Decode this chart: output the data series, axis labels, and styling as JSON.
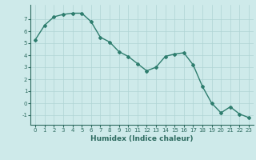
{
  "x": [
    0,
    1,
    2,
    3,
    4,
    5,
    6,
    7,
    8,
    9,
    10,
    11,
    12,
    13,
    14,
    15,
    16,
    17,
    18,
    19,
    20,
    21,
    22,
    23
  ],
  "y": [
    5.3,
    6.5,
    7.2,
    7.4,
    7.5,
    7.5,
    6.8,
    5.5,
    5.1,
    4.3,
    3.9,
    3.3,
    2.7,
    3.0,
    3.9,
    4.1,
    4.2,
    3.2,
    1.4,
    0.0,
    -0.8,
    -0.3,
    -0.9,
    -1.2
  ],
  "line_color": "#2e7d6e",
  "marker": "D",
  "marker_size": 2,
  "bg_color": "#ceeaea",
  "grid_color": "#afd4d4",
  "xlabel": "Humidex (Indice chaleur)",
  "xlim": [
    -0.5,
    23.5
  ],
  "ylim": [
    -1.8,
    8.2
  ],
  "yticks": [
    -1,
    0,
    1,
    2,
    3,
    4,
    5,
    6,
    7
  ],
  "xticks": [
    0,
    1,
    2,
    3,
    4,
    5,
    6,
    7,
    8,
    9,
    10,
    11,
    12,
    13,
    14,
    15,
    16,
    17,
    18,
    19,
    20,
    21,
    22,
    23
  ],
  "tick_color": "#2e6b60",
  "label_fontsize": 6.5,
  "tick_fontsize": 5.0,
  "line_width": 1.0
}
